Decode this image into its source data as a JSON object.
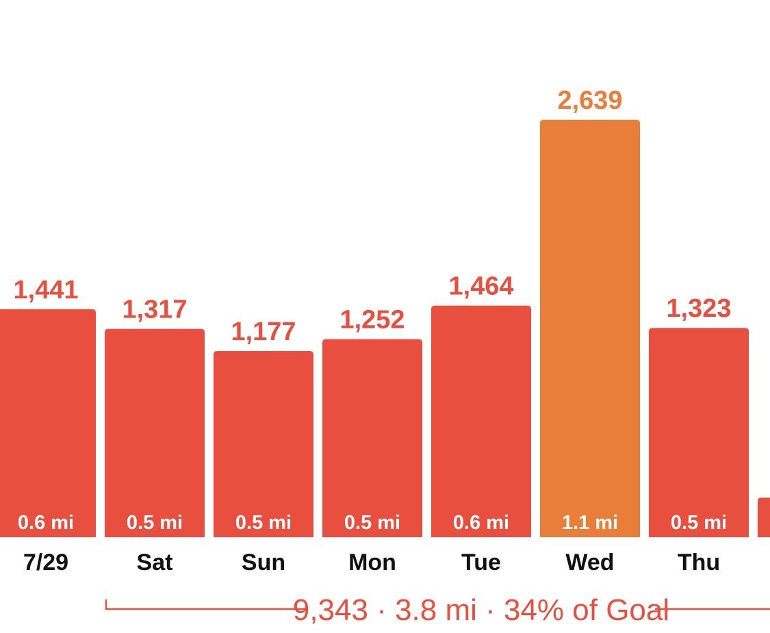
{
  "chart_data": {
    "type": "bar",
    "categories": [
      "7/29",
      "Sat",
      "Sun",
      "Mon",
      "Tue",
      "Wed",
      "Thu",
      ""
    ],
    "values": [
      1441,
      1317,
      1177,
      1252,
      1464,
      2639,
      1323,
      250
    ],
    "value_labels": [
      "1,441",
      "1,317",
      "1,177",
      "1,252",
      "1,464",
      "2,639",
      "1,323",
      ""
    ],
    "distance_labels": [
      "0.6 mi",
      "0.5 mi",
      "0.5 mi",
      "0.5 mi",
      "0.6 mi",
      "1.1 mi",
      "0.5 mi",
      ""
    ],
    "highlight_index": 5,
    "ylim": [
      0,
      2639
    ],
    "grid": false,
    "summary": "9,343 · 3.8 mi · 34% of Goal"
  },
  "colors": {
    "bar": "#e84f3f",
    "highlight": "#e87e3a",
    "value_text": "#e84f3f",
    "highlight_text": "#e87e3a",
    "bracket": "#e84f3f"
  }
}
